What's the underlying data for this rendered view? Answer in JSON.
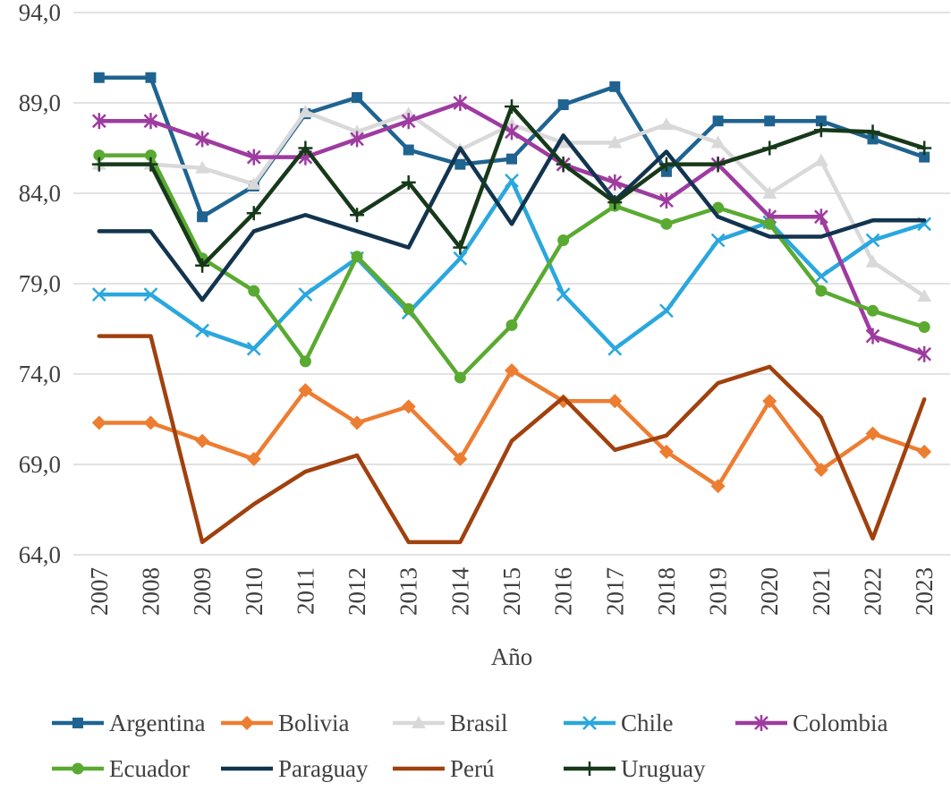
{
  "chart_data": {
    "type": "line",
    "xlabel": "Año",
    "ylabel": "",
    "title": "",
    "ylim": [
      64.0,
      94.0
    ],
    "y_ticks": [
      "64,0",
      "69,0",
      "74,0",
      "79,0",
      "84,0",
      "89,0",
      "94,0"
    ],
    "grid": true,
    "legend_position": "bottom",
    "x": [
      "2007",
      "2008",
      "2009",
      "2010",
      "2011",
      "2012",
      "2013",
      "2014",
      "2015",
      "2016",
      "2017",
      "2018",
      "2019",
      "2020",
      "2021",
      "2022",
      "2023"
    ],
    "series": [
      {
        "name": "Argentina",
        "color": "#1f6390",
        "marker": "square",
        "values": [
          90.4,
          90.4,
          82.7,
          84.4,
          88.4,
          89.3,
          86.4,
          85.6,
          85.9,
          88.9,
          89.9,
          85.2,
          88.0,
          88.0,
          88.0,
          87.0,
          86.0
        ]
      },
      {
        "name": "Bolivia",
        "color": "#ed7d31",
        "marker": "diamond",
        "values": [
          71.3,
          71.3,
          70.3,
          69.3,
          73.1,
          71.3,
          72.2,
          69.3,
          74.2,
          72.5,
          72.5,
          69.7,
          67.8,
          72.5,
          68.7,
          70.7,
          69.7
        ]
      },
      {
        "name": "Brasil",
        "color": "#d9d9d9",
        "marker": "triangle",
        "values": [
          85.6,
          85.6,
          85.4,
          84.5,
          88.5,
          87.4,
          88.4,
          86.4,
          87.8,
          86.8,
          86.8,
          87.8,
          86.8,
          84.0,
          85.8,
          80.2,
          78.3
        ]
      },
      {
        "name": "Chile",
        "color": "#2aa7de",
        "marker": "x",
        "values": [
          78.4,
          78.4,
          76.4,
          75.4,
          78.4,
          80.4,
          77.4,
          80.4,
          84.7,
          78.4,
          75.4,
          77.5,
          81.4,
          82.4,
          79.4,
          81.4,
          82.3
        ]
      },
      {
        "name": "Colombia",
        "color": "#9e3ba0",
        "marker": "asterisk",
        "values": [
          88.0,
          88.0,
          87.0,
          86.0,
          86.0,
          87.0,
          88.0,
          89.0,
          87.4,
          85.6,
          84.6,
          83.6,
          85.6,
          82.7,
          82.7,
          76.1,
          75.1
        ]
      },
      {
        "name": "Ecuador",
        "color": "#5aaa32",
        "marker": "circle",
        "values": [
          86.1,
          86.1,
          80.4,
          78.6,
          74.7,
          80.5,
          77.6,
          73.8,
          76.7,
          81.4,
          83.3,
          82.3,
          83.2,
          82.3,
          78.6,
          77.5,
          76.6
        ]
      },
      {
        "name": "Paraguay",
        "color": "#12344f",
        "marker": "none",
        "values": [
          81.9,
          81.9,
          78.1,
          81.9,
          82.8,
          81.9,
          81.0,
          86.5,
          82.3,
          87.2,
          83.6,
          86.3,
          82.7,
          81.6,
          81.6,
          82.5,
          82.5
        ]
      },
      {
        "name": "Perú",
        "color": "#a0410e",
        "marker": "none",
        "values": [
          76.1,
          76.1,
          64.7,
          66.8,
          68.6,
          69.5,
          64.7,
          64.7,
          70.3,
          72.7,
          69.8,
          70.6,
          73.5,
          74.4,
          71.6,
          64.9,
          72.6
        ]
      },
      {
        "name": "Uruguay",
        "color": "#17391a",
        "marker": "plus",
        "values": [
          85.6,
          85.6,
          80.0,
          82.9,
          86.5,
          82.8,
          84.6,
          81.0,
          88.8,
          85.6,
          83.5,
          85.6,
          85.6,
          86.5,
          87.5,
          87.4,
          86.5
        ]
      }
    ]
  }
}
